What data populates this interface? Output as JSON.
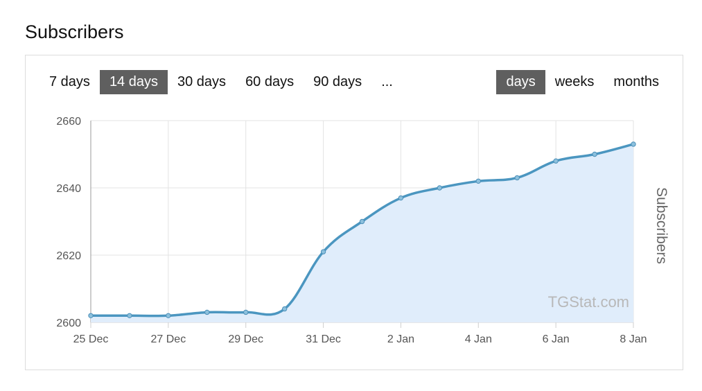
{
  "page": {
    "title": "Subscribers"
  },
  "toolbar": {
    "ranges": [
      {
        "label": "7 days",
        "active": false
      },
      {
        "label": "14 days",
        "active": true
      },
      {
        "label": "30 days",
        "active": false
      },
      {
        "label": "60 days",
        "active": false
      },
      {
        "label": "90 days",
        "active": false
      },
      {
        "label": "...",
        "active": false
      }
    ],
    "units": [
      {
        "label": "days",
        "active": true
      },
      {
        "label": "weeks",
        "active": false
      },
      {
        "label": "months",
        "active": false
      }
    ]
  },
  "chart_data": {
    "type": "area",
    "title": "",
    "xlabel": "",
    "ylabel": "Subscribers",
    "ylim": [
      2600,
      2660
    ],
    "yticks": [
      2600,
      2620,
      2640,
      2660
    ],
    "xticks": [
      "25 Dec",
      "27 Dec",
      "29 Dec",
      "31 Dec",
      "2 Jan",
      "4 Jan",
      "6 Jan",
      "8 Jan"
    ],
    "x": [
      "25 Dec",
      "26 Dec",
      "27 Dec",
      "28 Dec",
      "29 Dec",
      "30 Dec",
      "31 Dec",
      "1 Jan",
      "2 Jan",
      "3 Jan",
      "4 Jan",
      "5 Jan",
      "6 Jan",
      "7 Jan",
      "8 Jan"
    ],
    "series": [
      {
        "values": [
          2602,
          2602,
          2602,
          2603,
          2603,
          2604,
          2621,
          2630,
          2637,
          2640,
          2642,
          2643,
          2648,
          2650,
          2653
        ]
      }
    ],
    "grid": true,
    "legend": "none",
    "line_color": "#4b96c0",
    "fill_color": "#e0edfb",
    "credits": "TGStat.com"
  }
}
